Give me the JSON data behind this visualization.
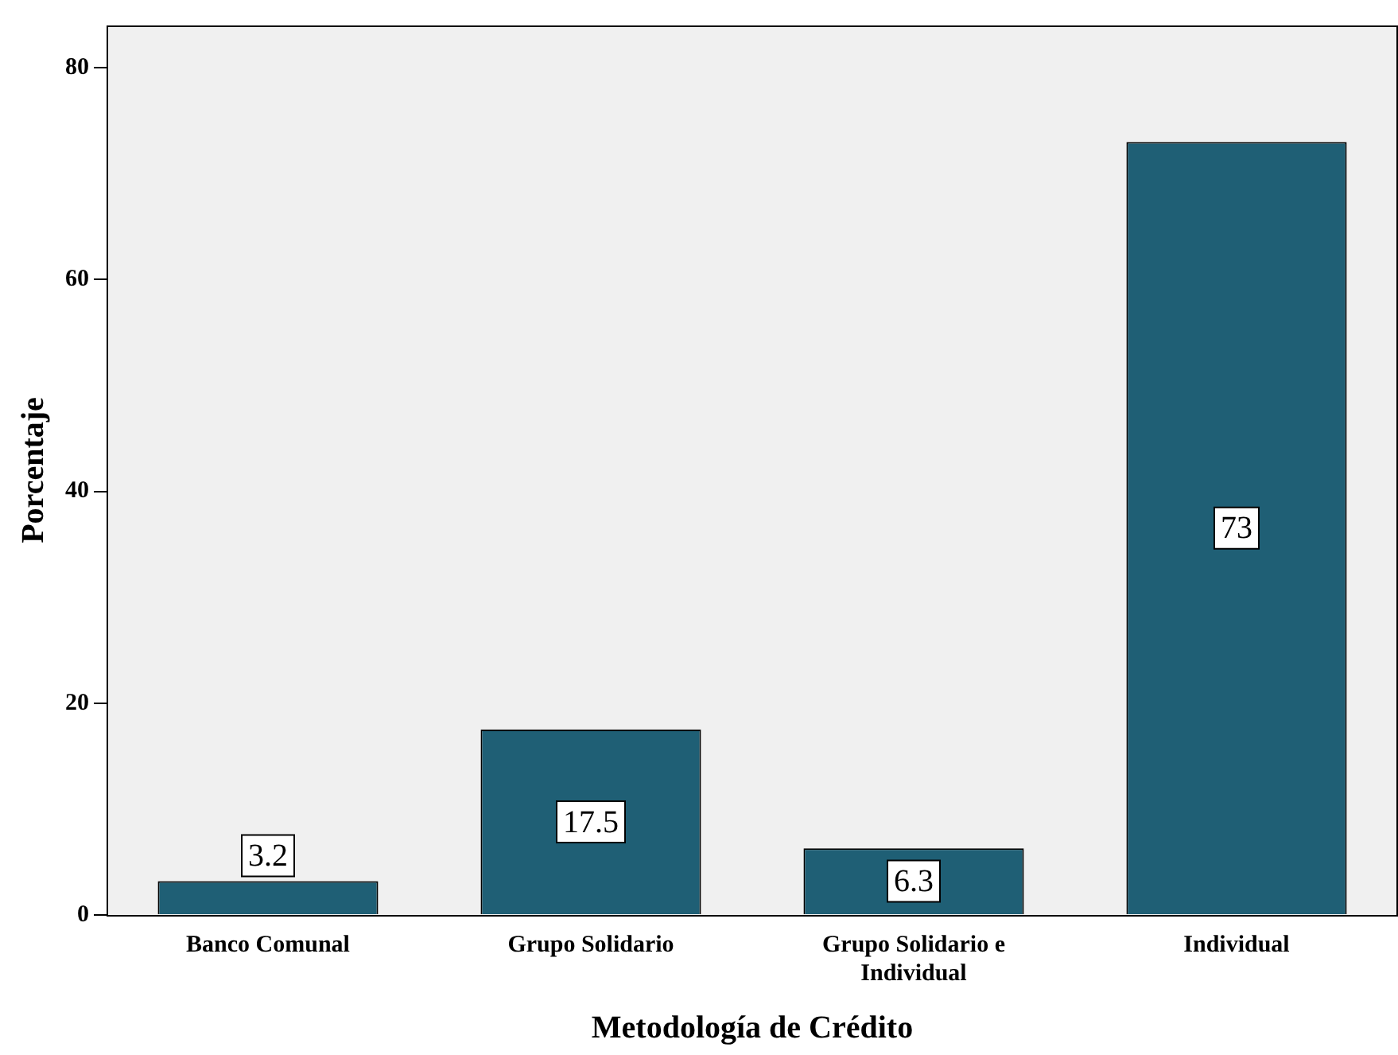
{
  "chart_data": {
    "type": "bar",
    "xlabel": "Metodología de Crédito",
    "ylabel": "Porcentaje",
    "categories": [
      "Banco Comunal",
      "Grupo Solidario",
      "Grupo Solidario e Individual",
      "Individual"
    ],
    "values": [
      3.2,
      17.5,
      6.3,
      73
    ],
    "color": "#1f5f75",
    "ylim": [
      0,
      84
    ],
    "yticks": [
      0,
      20,
      40,
      60,
      80
    ],
    "grid": false,
    "legend": false,
    "data_labels": true
  }
}
